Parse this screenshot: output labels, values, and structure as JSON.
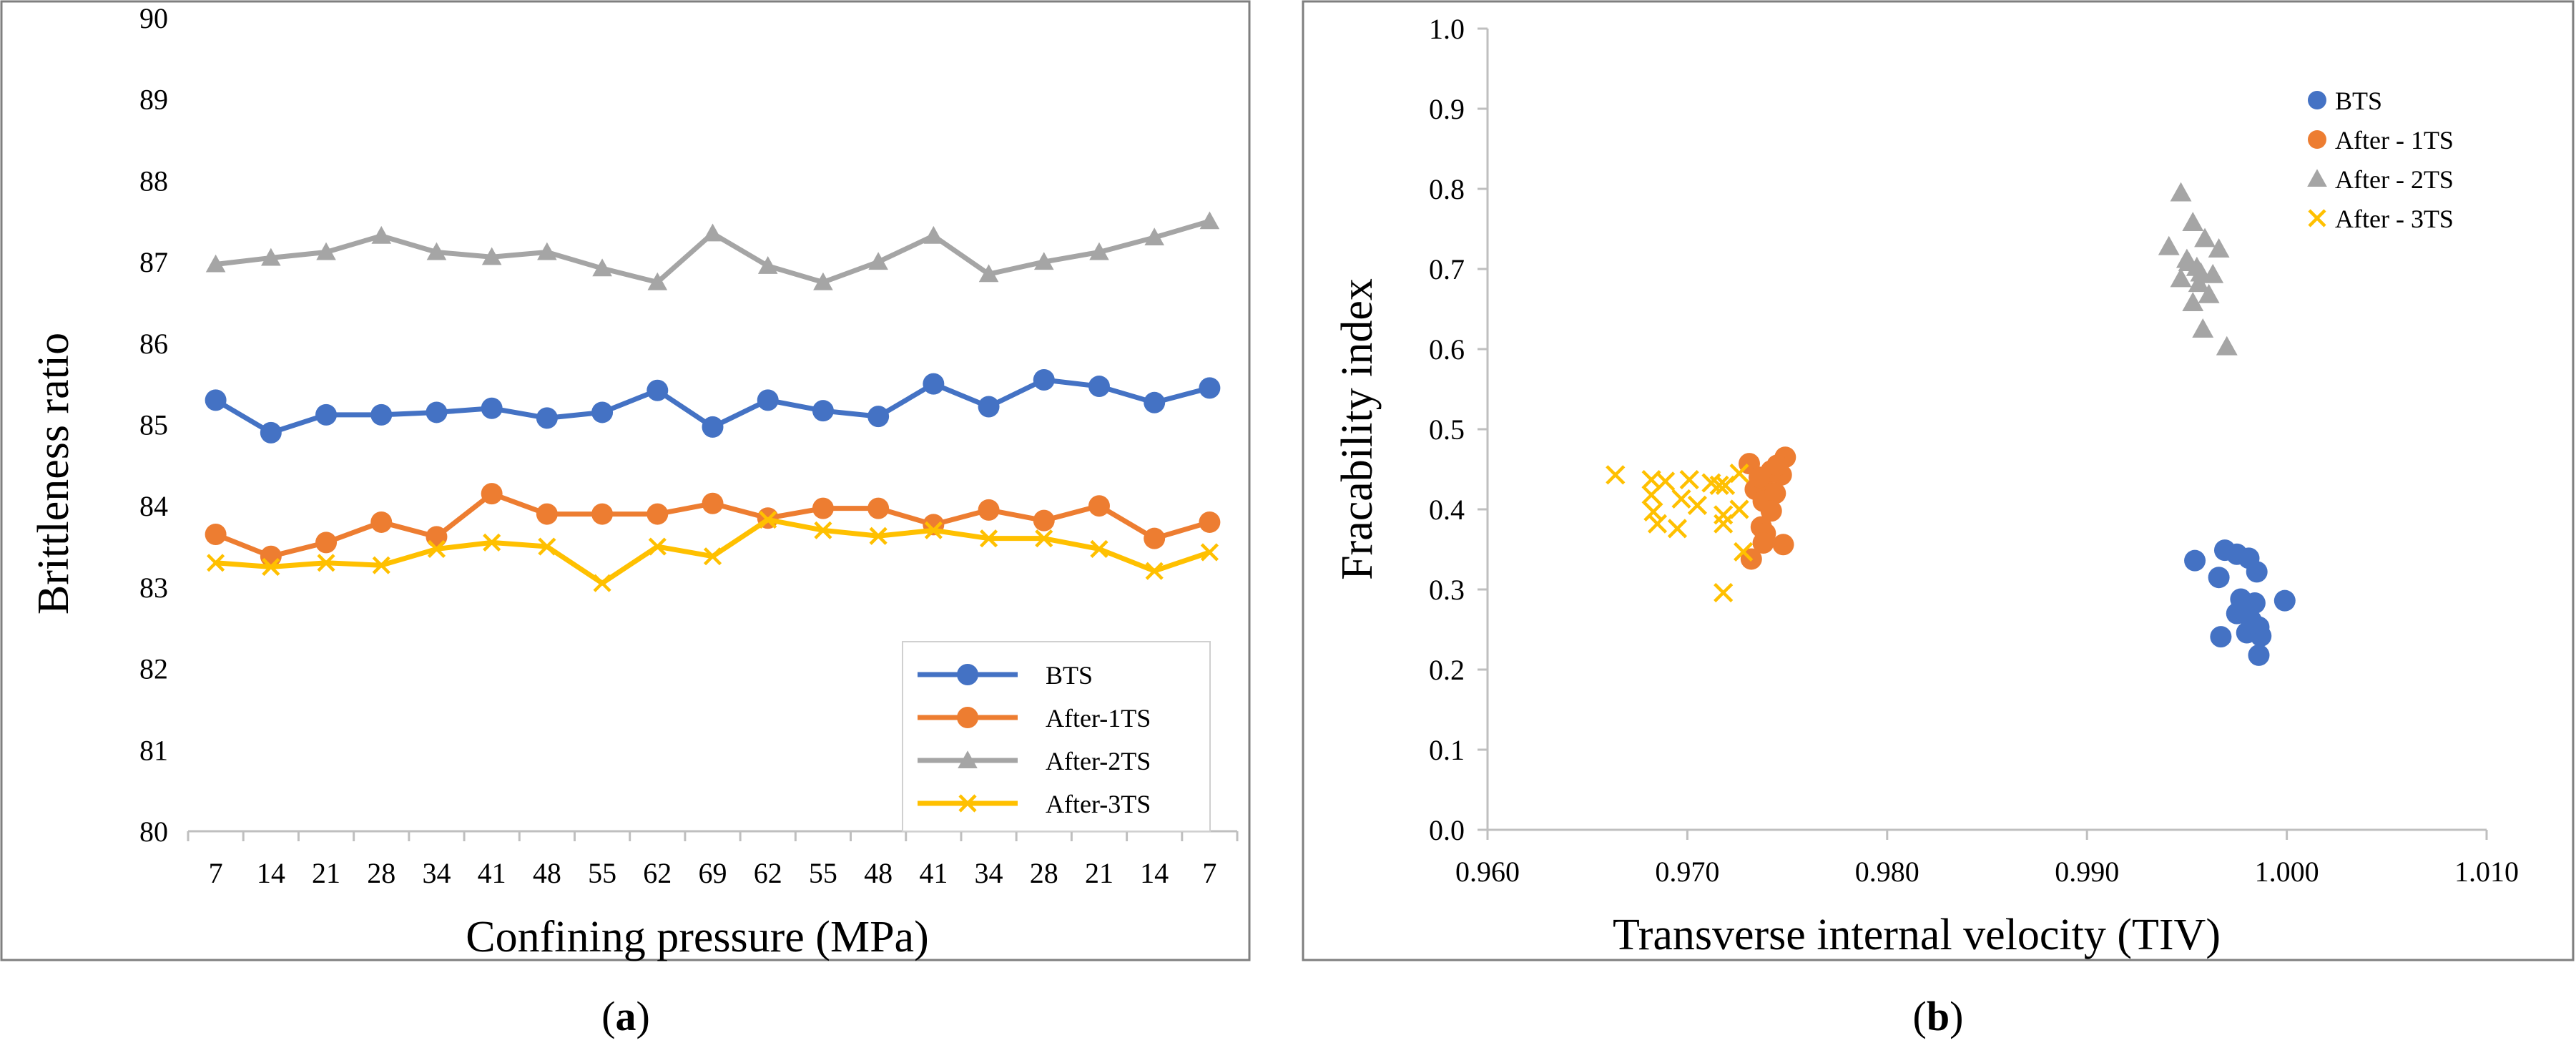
{
  "chart_data": [
    {
      "panel": "a",
      "type": "line",
      "title": "",
      "xlabel": "Confining pressure (MPa)",
      "ylabel": "Brittleness ratio",
      "ylim": [
        80,
        90
      ],
      "yticks": [
        "80",
        "81",
        "82",
        "83",
        "84",
        "85",
        "86",
        "87",
        "88",
        "89",
        "90"
      ],
      "categories": [
        "7",
        "14",
        "21",
        "28",
        "34",
        "41",
        "48",
        "55",
        "62",
        "69",
        "62",
        "55",
        "48",
        "41",
        "34",
        "28",
        "21",
        "14",
        "7"
      ],
      "legend_position": "bottom-right",
      "grid": false,
      "series": [
        {
          "name": "BTS",
          "color": "#4472C4",
          "marker": "circle",
          "values": [
            85.3,
            84.9,
            85.12,
            85.12,
            85.15,
            85.2,
            85.08,
            85.15,
            85.42,
            84.97,
            85.3,
            85.17,
            85.1,
            85.5,
            85.22,
            85.55,
            85.47,
            85.27,
            85.45
          ]
        },
        {
          "name": "After-1TS",
          "color": "#ED7D31",
          "marker": "circle",
          "values": [
            83.65,
            83.38,
            83.55,
            83.8,
            83.62,
            84.15,
            83.9,
            83.9,
            83.9,
            84.03,
            83.85,
            83.97,
            83.97,
            83.77,
            83.95,
            83.82,
            84.0,
            83.6,
            83.8
          ]
        },
        {
          "name": "After-2TS",
          "color": "#A5A5A5",
          "marker": "triangle",
          "values": [
            86.97,
            87.05,
            87.12,
            87.32,
            87.12,
            87.06,
            87.12,
            86.92,
            86.75,
            87.35,
            86.95,
            86.75,
            87.0,
            87.32,
            86.85,
            87.0,
            87.12,
            87.3,
            87.5
          ]
        },
        {
          "name": "After-3TS",
          "color": "#FFC000",
          "marker": "x",
          "values": [
            83.3,
            83.25,
            83.3,
            83.27,
            83.47,
            83.55,
            83.5,
            83.05,
            83.5,
            83.38,
            83.83,
            83.7,
            83.63,
            83.7,
            83.6,
            83.6,
            83.47,
            83.2,
            83.43
          ]
        }
      ]
    },
    {
      "panel": "b",
      "type": "scatter",
      "title": "",
      "xlabel": "Transverse internal velocity (TIV)",
      "ylabel": "Fracability index",
      "xlim": [
        0.96,
        1.01
      ],
      "ylim": [
        0.0,
        1.0
      ],
      "xticks": [
        "0.960",
        "0.970",
        "0.980",
        "0.990",
        "1.000",
        "1.010"
      ],
      "yticks": [
        "0.0",
        "0.1",
        "0.2",
        "0.3",
        "0.4",
        "0.5",
        "0.6",
        "0.7",
        "0.8",
        "0.9",
        "1.0"
      ],
      "legend_position": "top-right",
      "grid": false,
      "series": [
        {
          "name": "BTS",
          "color": "#4472C4",
          "marker": "circle",
          "points": [
            [
              0.9954,
              0.336
            ],
            [
              0.9966,
              0.315
            ],
            [
              0.9969,
              0.349
            ],
            [
              0.9975,
              0.344
            ],
            [
              0.9981,
              0.339
            ],
            [
              0.9985,
              0.322
            ],
            [
              0.9977,
              0.288
            ],
            [
              0.9979,
              0.272
            ],
            [
              0.9984,
              0.283
            ],
            [
              0.9999,
              0.286
            ],
            [
              0.9975,
              0.27
            ],
            [
              0.9982,
              0.262
            ],
            [
              0.9986,
              0.253
            ],
            [
              0.998,
              0.246
            ],
            [
              0.9987,
              0.242
            ],
            [
              0.9967,
              0.241
            ],
            [
              0.9986,
              0.218
            ],
            [
              0.9977,
              0.276
            ],
            [
              0.9983,
              0.258
            ]
          ]
        },
        {
          "name": "After - 1TS",
          "color": "#ED7D31",
          "marker": "circle",
          "points": [
            [
              0.9731,
              0.457
            ],
            [
              0.9738,
              0.432
            ],
            [
              0.9742,
              0.448
            ],
            [
              0.9747,
              0.443
            ],
            [
              0.9749,
              0.465
            ],
            [
              0.9734,
              0.425
            ],
            [
              0.9738,
              0.41
            ],
            [
              0.9744,
              0.42
            ],
            [
              0.9742,
              0.398
            ],
            [
              0.9737,
              0.378
            ],
            [
              0.9739,
              0.37
            ],
            [
              0.9738,
              0.358
            ],
            [
              0.9748,
              0.356
            ],
            [
              0.9732,
              0.338
            ],
            [
              0.9745,
              0.455
            ],
            [
              0.9736,
              0.44
            ]
          ]
        },
        {
          "name": "After - 2TS",
          "color": "#A5A5A5",
          "marker": "triangle",
          "points": [
            [
              0.9947,
              0.795
            ],
            [
              0.9953,
              0.758
            ],
            [
              0.9959,
              0.738
            ],
            [
              0.9941,
              0.728
            ],
            [
              0.9966,
              0.725
            ],
            [
              0.9951,
              0.708
            ],
            [
              0.9955,
              0.702
            ],
            [
              0.9957,
              0.695
            ],
            [
              0.9963,
              0.693
            ],
            [
              0.9947,
              0.688
            ],
            [
              0.9956,
              0.682
            ],
            [
              0.9961,
              0.668
            ],
            [
              0.9953,
              0.658
            ],
            [
              0.9958,
              0.625
            ],
            [
              0.997,
              0.603
            ],
            [
              0.995,
              0.712
            ]
          ]
        },
        {
          "name": "After - 3TS",
          "color": "#FFC000",
          "marker": "x",
          "points": [
            [
              0.9664,
              0.443
            ],
            [
              0.9682,
              0.437
            ],
            [
              0.9689,
              0.435
            ],
            [
              0.9701,
              0.437
            ],
            [
              0.9712,
              0.433
            ],
            [
              0.9719,
              0.43
            ],
            [
              0.9726,
              0.445
            ],
            [
              0.9682,
              0.418
            ],
            [
              0.9697,
              0.413
            ],
            [
              0.9705,
              0.405
            ],
            [
              0.9683,
              0.397
            ],
            [
              0.9718,
              0.393
            ],
            [
              0.9726,
              0.4
            ],
            [
              0.9685,
              0.382
            ],
            [
              0.9695,
              0.376
            ],
            [
              0.9718,
              0.382
            ],
            [
              0.9728,
              0.347
            ],
            [
              0.9718,
              0.296
            ],
            [
              0.9716,
              0.43
            ]
          ]
        }
      ]
    }
  ],
  "panel_labels": [
    "(a)",
    "(b)"
  ]
}
